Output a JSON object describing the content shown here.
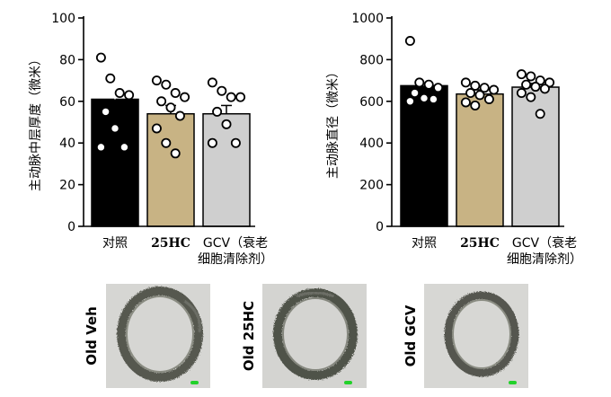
{
  "chart_data": [
    {
      "type": "bar",
      "ylabel": "主动脉中层厚度（微米）",
      "ylim": [
        0,
        100
      ],
      "yticks": [
        "0",
        "20",
        "40",
        "60",
        "80",
        "100"
      ],
      "categories": [
        "对照",
        "25HC",
        "GCV（衰老细胞清除剂）"
      ],
      "category_lines": [
        [
          "对照"
        ],
        [
          "25HC"
        ],
        [
          "GCV（衰老",
          "细胞清除剂）"
        ]
      ],
      "values": [
        61,
        54,
        54
      ],
      "errors": [
        5,
        4,
        4
      ],
      "bar_colors": [
        "#000000",
        "#c8b384",
        "#cfcfcf"
      ],
      "points": [
        [
          81,
          71,
          64,
          63,
          55,
          47,
          38,
          38
        ],
        [
          70,
          68,
          64,
          62,
          60,
          57,
          53,
          47,
          40,
          35
        ],
        [
          69,
          65,
          62,
          62,
          55,
          49,
          40,
          40
        ]
      ]
    },
    {
      "type": "bar",
      "ylabel": "主动脉直径（微米）",
      "ylim": [
        0,
        1000
      ],
      "yticks": [
        "0",
        "200",
        "400",
        "600",
        "800",
        "1000"
      ],
      "categories": [
        "对照",
        "25HC",
        "GCV（衰老细胞清除剂）"
      ],
      "category_lines": [
        [
          "对照"
        ],
        [
          "25HC"
        ],
        [
          "GCV（衰老",
          "细胞清除剂）"
        ]
      ],
      "values": [
        675,
        635,
        668
      ],
      "errors": [
        30,
        20,
        18
      ],
      "bar_colors": [
        "#000000",
        "#c8b384",
        "#cfcfcf"
      ],
      "points": [
        [
          890,
          690,
          680,
          665,
          640,
          615,
          610,
          600
        ],
        [
          690,
          675,
          665,
          655,
          640,
          630,
          610,
          595,
          580
        ],
        [
          730,
          720,
          700,
          690,
          680,
          670,
          660,
          640,
          620,
          540
        ]
      ]
    }
  ],
  "micrographs": [
    {
      "label": "Old Veh"
    },
    {
      "label": "Old 25HC"
    },
    {
      "label": "Old GCV"
    }
  ]
}
